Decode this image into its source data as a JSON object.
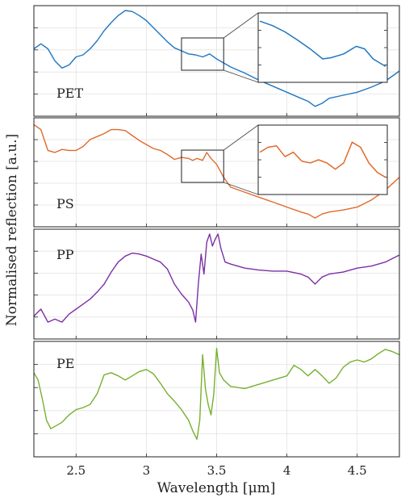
{
  "figure": {
    "ylabel": "Normalised reflection [a.u.]",
    "xlabel": "Wavelength [μm]"
  },
  "chart_data": {
    "type": "line",
    "xlabel": "Wavelength [μm]",
    "ylabel": "Normalised reflection [a.u.]",
    "xlim": [
      2.2,
      4.8
    ],
    "x_ticks": [
      2.5,
      3,
      3.5,
      4,
      4.5
    ],
    "x_tick_labels": [
      "2.5",
      "3",
      "3.5",
      "4",
      "4.5"
    ],
    "grid": true,
    "panels": [
      {
        "label": "PET",
        "color": "#1f77c4",
        "ylim": [
          0,
          1
        ],
        "x": [
          2.2,
          2.25,
          2.3,
          2.35,
          2.4,
          2.45,
          2.5,
          2.55,
          2.6,
          2.65,
          2.7,
          2.75,
          2.8,
          2.85,
          2.9,
          2.95,
          3.0,
          3.05,
          3.1,
          3.15,
          3.2,
          3.25,
          3.3,
          3.35,
          3.4,
          3.45,
          3.5,
          3.55,
          3.6,
          3.7,
          3.8,
          3.9,
          4.0,
          4.1,
          4.15,
          4.2,
          4.25,
          4.3,
          4.4,
          4.5,
          4.6,
          4.7,
          4.8
        ],
        "y": [
          0.62,
          0.67,
          0.62,
          0.5,
          0.43,
          0.46,
          0.54,
          0.56,
          0.62,
          0.7,
          0.8,
          0.88,
          0.95,
          1.0,
          0.99,
          0.95,
          0.9,
          0.83,
          0.76,
          0.69,
          0.63,
          0.6,
          0.57,
          0.56,
          0.54,
          0.57,
          0.52,
          0.48,
          0.44,
          0.38,
          0.31,
          0.25,
          0.19,
          0.13,
          0.1,
          0.05,
          0.08,
          0.13,
          0.16,
          0.19,
          0.24,
          0.3,
          0.4
        ],
        "inset": {
          "xlim": [
            3.25,
            3.55
          ],
          "x": [
            3.25,
            3.28,
            3.31,
            3.34,
            3.37,
            3.4,
            3.42,
            3.45,
            3.48,
            3.5,
            3.52,
            3.55
          ],
          "y": [
            0.92,
            0.85,
            0.75,
            0.62,
            0.48,
            0.32,
            0.34,
            0.4,
            0.52,
            0.48,
            0.32,
            0.2
          ]
        }
      },
      {
        "label": "PS",
        "color": "#e06a2c",
        "ylim": [
          0,
          1
        ],
        "x": [
          2.2,
          2.25,
          2.3,
          2.35,
          2.4,
          2.45,
          2.5,
          2.55,
          2.6,
          2.65,
          2.7,
          2.75,
          2.8,
          2.85,
          2.9,
          2.95,
          3.0,
          3.05,
          3.1,
          3.15,
          3.2,
          3.25,
          3.3,
          3.33,
          3.36,
          3.4,
          3.43,
          3.46,
          3.5,
          3.55,
          3.6,
          3.7,
          3.8,
          3.9,
          4.0,
          4.1,
          4.15,
          4.2,
          4.25,
          4.3,
          4.4,
          4.5,
          4.6,
          4.7,
          4.8
        ],
        "y": [
          0.98,
          0.93,
          0.72,
          0.7,
          0.73,
          0.72,
          0.72,
          0.76,
          0.83,
          0.86,
          0.89,
          0.93,
          0.93,
          0.92,
          0.87,
          0.82,
          0.78,
          0.74,
          0.72,
          0.68,
          0.63,
          0.65,
          0.64,
          0.62,
          0.64,
          0.62,
          0.7,
          0.64,
          0.58,
          0.45,
          0.35,
          0.3,
          0.25,
          0.2,
          0.15,
          0.1,
          0.08,
          0.04,
          0.08,
          0.1,
          0.12,
          0.15,
          0.22,
          0.32,
          0.45
        ],
        "inset": {
          "xlim": [
            3.25,
            3.55
          ],
          "x": [
            3.25,
            3.27,
            3.29,
            3.31,
            3.33,
            3.35,
            3.37,
            3.39,
            3.41,
            3.43,
            3.45,
            3.47,
            3.49,
            3.51,
            3.53,
            3.55
          ],
          "y": [
            0.62,
            0.7,
            0.72,
            0.55,
            0.62,
            0.48,
            0.45,
            0.5,
            0.45,
            0.35,
            0.45,
            0.78,
            0.7,
            0.45,
            0.3,
            0.22
          ]
        }
      },
      {
        "label": "PP",
        "color": "#7b2fa6",
        "ylim": [
          0,
          1
        ],
        "x": [
          2.2,
          2.25,
          2.3,
          2.35,
          2.4,
          2.45,
          2.5,
          2.55,
          2.6,
          2.65,
          2.7,
          2.75,
          2.8,
          2.85,
          2.9,
          2.95,
          3.0,
          3.05,
          3.1,
          3.15,
          3.2,
          3.25,
          3.3,
          3.33,
          3.35,
          3.37,
          3.39,
          3.41,
          3.43,
          3.45,
          3.47,
          3.49,
          3.51,
          3.53,
          3.56,
          3.6,
          3.7,
          3.8,
          3.9,
          4.0,
          4.1,
          4.15,
          4.2,
          4.25,
          4.3,
          4.4,
          4.5,
          4.6,
          4.7,
          4.8
        ],
        "y": [
          0.18,
          0.25,
          0.12,
          0.15,
          0.12,
          0.2,
          0.25,
          0.3,
          0.35,
          0.42,
          0.5,
          0.62,
          0.72,
          0.78,
          0.81,
          0.8,
          0.78,
          0.75,
          0.72,
          0.65,
          0.5,
          0.4,
          0.32,
          0.24,
          0.12,
          0.5,
          0.8,
          0.6,
          0.92,
          1.0,
          0.88,
          0.95,
          1.0,
          0.86,
          0.72,
          0.7,
          0.66,
          0.64,
          0.63,
          0.63,
          0.6,
          0.57,
          0.5,
          0.57,
          0.6,
          0.62,
          0.66,
          0.68,
          0.72,
          0.79
        ]
      },
      {
        "label": "PE",
        "color": "#77b02f",
        "ylim": [
          0,
          1
        ],
        "x": [
          2.2,
          2.23,
          2.26,
          2.29,
          2.32,
          2.36,
          2.4,
          2.45,
          2.5,
          2.55,
          2.6,
          2.65,
          2.7,
          2.75,
          2.8,
          2.85,
          2.9,
          2.95,
          3.0,
          3.05,
          3.1,
          3.15,
          3.2,
          3.25,
          3.3,
          3.33,
          3.36,
          3.38,
          3.4,
          3.42,
          3.44,
          3.46,
          3.48,
          3.5,
          3.52,
          3.55,
          3.6,
          3.7,
          3.8,
          3.9,
          4.0,
          4.05,
          4.1,
          4.15,
          4.2,
          4.25,
          4.3,
          4.35,
          4.4,
          4.45,
          4.5,
          4.55,
          4.6,
          4.65,
          4.7,
          4.75,
          4.8
        ],
        "y": [
          0.75,
          0.68,
          0.5,
          0.3,
          0.22,
          0.25,
          0.28,
          0.35,
          0.4,
          0.42,
          0.45,
          0.55,
          0.73,
          0.75,
          0.72,
          0.68,
          0.72,
          0.76,
          0.78,
          0.74,
          0.65,
          0.55,
          0.48,
          0.4,
          0.3,
          0.2,
          0.12,
          0.3,
          0.92,
          0.6,
          0.45,
          0.35,
          0.55,
          0.98,
          0.75,
          0.68,
          0.62,
          0.6,
          0.64,
          0.68,
          0.72,
          0.82,
          0.78,
          0.72,
          0.78,
          0.72,
          0.65,
          0.7,
          0.8,
          0.85,
          0.87,
          0.85,
          0.88,
          0.93,
          0.97,
          0.95,
          0.92
        ]
      }
    ]
  }
}
